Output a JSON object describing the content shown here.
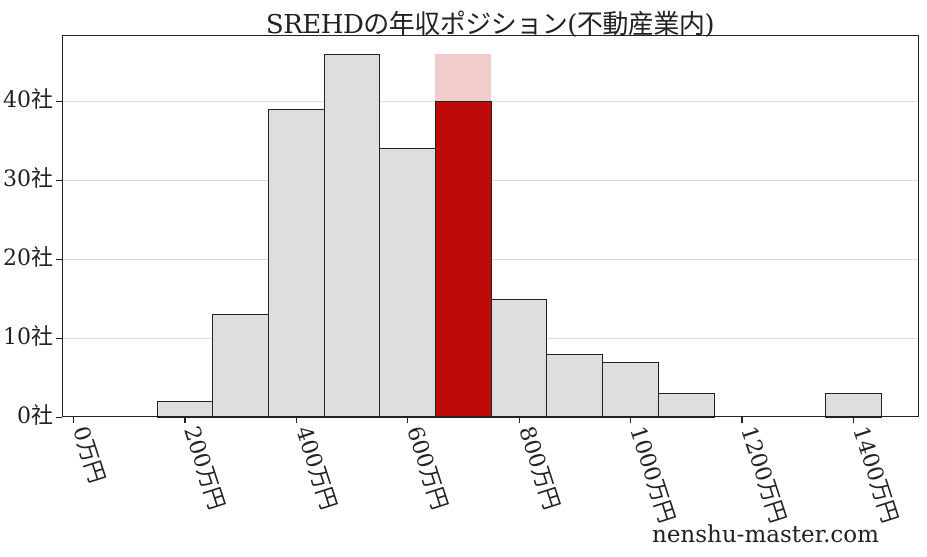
{
  "chart_data": {
    "type": "bar",
    "title": "SREHDの年収ポジション(不動産業内)",
    "xlabel": "",
    "ylabel": "",
    "x_unit": "万円",
    "y_unit": "社",
    "bin_width": 100,
    "bins": [
      {
        "start": 150,
        "end": 250,
        "count": 2
      },
      {
        "start": 250,
        "end": 350,
        "count": 13
      },
      {
        "start": 350,
        "end": 450,
        "count": 39
      },
      {
        "start": 450,
        "end": 550,
        "count": 46
      },
      {
        "start": 550,
        "end": 650,
        "count": 34
      },
      {
        "start": 650,
        "end": 750,
        "count": 40,
        "highlight": true
      },
      {
        "start": 750,
        "end": 850,
        "count": 15
      },
      {
        "start": 850,
        "end": 950,
        "count": 8
      },
      {
        "start": 950,
        "end": 1050,
        "count": 7
      },
      {
        "start": 1050,
        "end": 1150,
        "count": 3
      },
      {
        "start": 1150,
        "end": 1250,
        "count": 0
      },
      {
        "start": 1250,
        "end": 1350,
        "count": 0
      },
      {
        "start": 1350,
        "end": 1450,
        "count": 3
      }
    ],
    "highlight_marker": {
      "start": 650,
      "end": 750,
      "top": 46,
      "color": "#f0cccc"
    },
    "xticks": [
      0,
      200,
      400,
      600,
      800,
      1000,
      1200,
      1400
    ],
    "xtick_labels": [
      "0万円",
      "200万円",
      "400万円",
      "600万円",
      "800万円",
      "1000万円",
      "1200万円",
      "1400万円"
    ],
    "yticks": [
      0,
      10,
      20,
      30,
      40
    ],
    "ytick_labels": [
      "0社",
      "10社",
      "20社",
      "30社",
      "40社"
    ],
    "xlim": [
      -20,
      1520
    ],
    "ylim": [
      0,
      48.3
    ],
    "grid": "y",
    "colors": {
      "bar": "#dddee0",
      "highlight": "#bf0a0a",
      "edge": "#222222"
    }
  },
  "watermark": "nenshu-master.com"
}
